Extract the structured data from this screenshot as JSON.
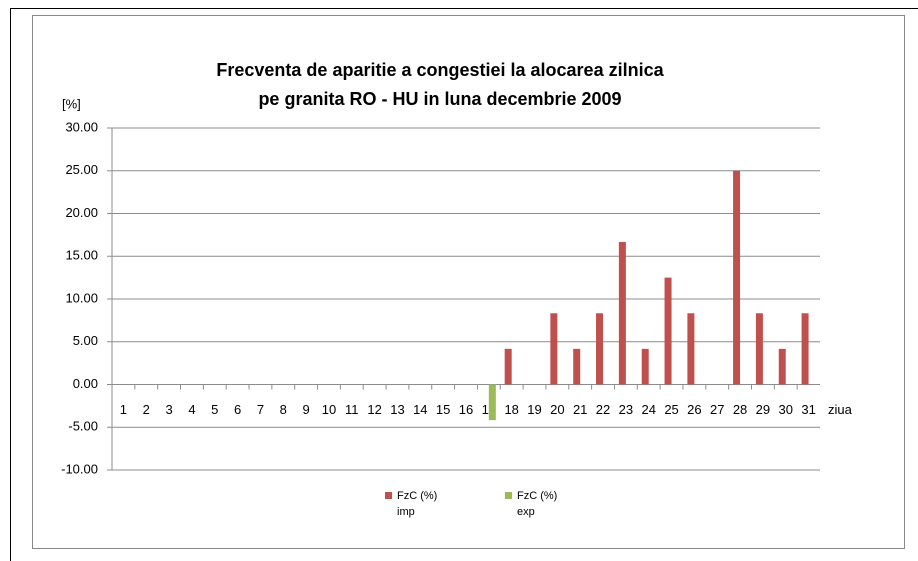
{
  "chart_data": {
    "type": "bar",
    "title": "Frecventa de aparitie a congestiei la alocarea zilnica\npe granita RO - HU in luna decembrie 2009",
    "y_label": "[%]",
    "x_label": "ziua",
    "categories": [
      "1",
      "2",
      "3",
      "4",
      "5",
      "6",
      "7",
      "8",
      "9",
      "10",
      "11",
      "12",
      "13",
      "14",
      "15",
      "16",
      "17",
      "18",
      "19",
      "20",
      "21",
      "22",
      "23",
      "24",
      "25",
      "26",
      "27",
      "28",
      "29",
      "30",
      "31"
    ],
    "series": [
      {
        "name": "FzC (%) imp",
        "color": "#c0504d",
        "values": [
          0,
          0,
          0,
          0,
          0,
          0,
          0,
          0,
          0,
          0,
          0,
          0,
          0,
          0,
          0,
          0,
          0,
          4.17,
          0,
          8.33,
          4.17,
          8.33,
          16.67,
          4.17,
          12.5,
          8.33,
          0,
          25,
          8.33,
          4.17,
          8.33
        ]
      },
      {
        "name": "FzC (%) exp",
        "color": "#9bbb59",
        "values": [
          0,
          0,
          0,
          0,
          0,
          0,
          0,
          0,
          0,
          0,
          0,
          0,
          0,
          0,
          0,
          0,
          -4.17,
          0,
          0,
          0,
          0,
          0,
          0,
          0,
          0,
          0,
          0,
          0,
          0,
          0,
          0
        ]
      }
    ],
    "ylim": [
      -10,
      30
    ],
    "yticks": [
      {
        "value": -10,
        "label": "-10.00"
      },
      {
        "value": -5,
        "label": "-5.00"
      },
      {
        "value": 0,
        "label": "0.00"
      },
      {
        "value": 5,
        "label": "5.00"
      },
      {
        "value": 10,
        "label": "10.00"
      },
      {
        "value": 15,
        "label": "15.00"
      },
      {
        "value": 20,
        "label": "20.00"
      },
      {
        "value": 25,
        "label": "25.00"
      },
      {
        "value": 30,
        "label": "30.00"
      }
    ],
    "grid": true,
    "legend": "bottom"
  }
}
